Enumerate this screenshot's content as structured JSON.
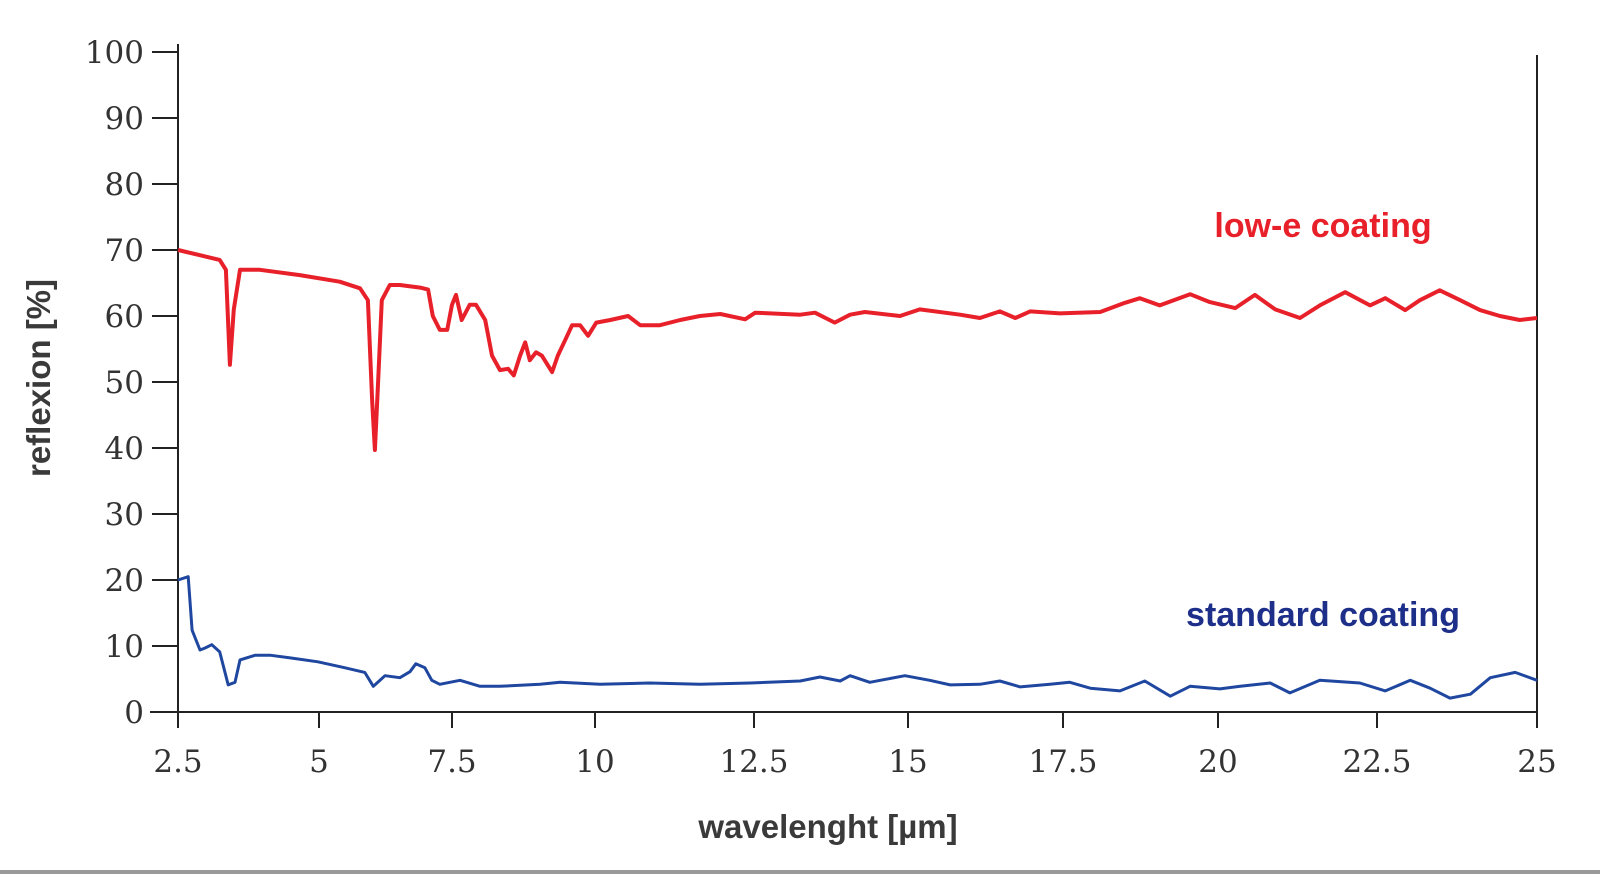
{
  "chart_data": {
    "type": "line",
    "title": "",
    "xlabel": "wavelenght [µm]",
    "ylabel": "reflexion [%]",
    "xlim": [
      2.5,
      25
    ],
    "ylim": [
      0,
      100
    ],
    "x_ticks": [
      "2.5",
      "5",
      "7.5",
      "10",
      "12.5",
      "15",
      "17.5",
      "20",
      "22.5",
      "25"
    ],
    "y_ticks": [
      "0",
      "10",
      "20",
      "30",
      "40",
      "50",
      "60",
      "70",
      "80",
      "90",
      "100"
    ],
    "grid": false,
    "legend": "inline labels at right",
    "series": [
      {
        "name": "low-e coating",
        "color": "#e8202a",
        "label_color": "#e8202a",
        "points": [
          [
            2.5,
            70
          ],
          [
            3.24,
            68.5
          ],
          [
            3.35,
            67
          ],
          [
            3.42,
            52.6
          ],
          [
            3.49,
            61
          ],
          [
            3.6,
            67
          ],
          [
            3.95,
            67
          ],
          [
            4.66,
            66.2
          ],
          [
            5.39,
            65.2
          ],
          [
            5.77,
            64.2
          ],
          [
            5.92,
            62.4
          ],
          [
            6.0,
            47
          ],
          [
            6.05,
            39.7
          ],
          [
            6.11,
            50
          ],
          [
            6.18,
            62.4
          ],
          [
            6.33,
            64.7
          ],
          [
            6.52,
            64.7
          ],
          [
            6.9,
            64.3
          ],
          [
            7.05,
            64
          ],
          [
            7.14,
            60
          ],
          [
            7.27,
            57.9
          ],
          [
            7.41,
            57.9
          ],
          [
            7.5,
            61.7
          ],
          [
            7.57,
            63.2
          ],
          [
            7.67,
            59.4
          ],
          [
            7.81,
            61.7
          ],
          [
            7.92,
            61.7
          ],
          [
            8.08,
            59.4
          ],
          [
            8.2,
            54
          ],
          [
            8.34,
            51.8
          ],
          [
            8.48,
            52
          ],
          [
            8.58,
            51
          ],
          [
            8.69,
            54
          ],
          [
            8.78,
            56
          ],
          [
            8.86,
            53.3
          ],
          [
            8.97,
            54.5
          ],
          [
            9.07,
            54
          ],
          [
            9.25,
            51.5
          ],
          [
            9.35,
            54
          ],
          [
            9.48,
            56.4
          ],
          [
            9.6,
            58.6
          ],
          [
            9.74,
            58.6
          ],
          [
            9.88,
            57
          ],
          [
            10.02,
            59
          ],
          [
            10.24,
            59.4
          ],
          [
            10.52,
            60
          ],
          [
            10.71,
            58.6
          ],
          [
            11.02,
            58.6
          ],
          [
            11.34,
            59.4
          ],
          [
            11.65,
            60
          ],
          [
            11.97,
            60.3
          ],
          [
            12.36,
            59.5
          ],
          [
            12.52,
            60.5
          ],
          [
            13.25,
            60.2
          ],
          [
            13.49,
            60.5
          ],
          [
            13.81,
            59
          ],
          [
            14.06,
            60.2
          ],
          [
            14.3,
            60.6
          ],
          [
            14.87,
            60
          ],
          [
            15.19,
            61
          ],
          [
            15.84,
            60.2
          ],
          [
            16.16,
            59.7
          ],
          [
            16.48,
            60.7
          ],
          [
            16.73,
            59.7
          ],
          [
            16.97,
            60.7
          ],
          [
            17.45,
            60.4
          ],
          [
            18.1,
            60.6
          ],
          [
            18.5,
            62
          ],
          [
            18.74,
            62.7
          ],
          [
            19.06,
            61.6
          ],
          [
            19.55,
            63.3
          ],
          [
            19.87,
            62.1
          ],
          [
            20.27,
            61.2
          ],
          [
            20.58,
            63.2
          ],
          [
            20.9,
            61
          ],
          [
            21.29,
            59.7
          ],
          [
            21.6,
            61.6
          ],
          [
            22.0,
            63.6
          ],
          [
            22.39,
            61.6
          ],
          [
            22.63,
            62.7
          ],
          [
            22.94,
            60.9
          ],
          [
            23.17,
            62.4
          ],
          [
            23.48,
            63.9
          ],
          [
            23.8,
            62.4
          ],
          [
            24.11,
            60.9
          ],
          [
            24.42,
            60
          ],
          [
            24.73,
            59.4
          ],
          [
            25,
            59.7
          ]
        ]
      },
      {
        "name": "standard coating",
        "color": "#1f47a0",
        "label_color": "#1e2f8a",
        "points": [
          [
            2.5,
            20
          ],
          [
            2.68,
            20.5
          ],
          [
            2.75,
            12.4
          ],
          [
            2.89,
            9.4
          ],
          [
            2.98,
            9.7
          ],
          [
            3.1,
            10.2
          ],
          [
            3.24,
            9.1
          ],
          [
            3.39,
            4.1
          ],
          [
            3.51,
            4.5
          ],
          [
            3.6,
            7.9
          ],
          [
            3.87,
            8.6
          ],
          [
            4.13,
            8.6
          ],
          [
            4.49,
            8.2
          ],
          [
            4.98,
            7.6
          ],
          [
            5.49,
            6.7
          ],
          [
            5.86,
            6
          ],
          [
            6.02,
            3.9
          ],
          [
            6.24,
            5.5
          ],
          [
            6.52,
            5.2
          ],
          [
            6.71,
            6.1
          ],
          [
            6.82,
            7.3
          ],
          [
            6.99,
            6.7
          ],
          [
            7.12,
            4.8
          ],
          [
            7.27,
            4.2
          ],
          [
            7.64,
            4.8
          ],
          [
            7.99,
            3.9
          ],
          [
            8.34,
            3.9
          ],
          [
            9.04,
            4.2
          ],
          [
            9.39,
            4.5
          ],
          [
            10.08,
            4.2
          ],
          [
            10.86,
            4.4
          ],
          [
            11.65,
            4.2
          ],
          [
            12.44,
            4.4
          ],
          [
            13.25,
            4.7
          ],
          [
            13.57,
            5.3
          ],
          [
            13.9,
            4.7
          ],
          [
            14.06,
            5.5
          ],
          [
            14.38,
            4.5
          ],
          [
            14.55,
            4.8
          ],
          [
            14.95,
            5.5
          ],
          [
            15.35,
            4.8
          ],
          [
            15.68,
            4.1
          ],
          [
            16.16,
            4.2
          ],
          [
            16.48,
            4.7
          ],
          [
            16.81,
            3.8
          ],
          [
            17.29,
            4.2
          ],
          [
            17.61,
            4.5
          ],
          [
            17.94,
            3.6
          ],
          [
            18.42,
            3.2
          ],
          [
            18.82,
            4.7
          ],
          [
            19.23,
            2.4
          ],
          [
            19.55,
            3.9
          ],
          [
            20.03,
            3.5
          ],
          [
            20.35,
            3.9
          ],
          [
            20.82,
            4.4
          ],
          [
            21.13,
            2.9
          ],
          [
            21.6,
            4.8
          ],
          [
            22.23,
            4.4
          ],
          [
            22.63,
            3.2
          ],
          [
            23.02,
            4.8
          ],
          [
            23.33,
            3.6
          ],
          [
            23.64,
            2.1
          ],
          [
            23.96,
            2.7
          ],
          [
            24.27,
            5.2
          ],
          [
            24.66,
            6
          ],
          [
            25,
            4.8
          ]
        ]
      }
    ]
  }
}
